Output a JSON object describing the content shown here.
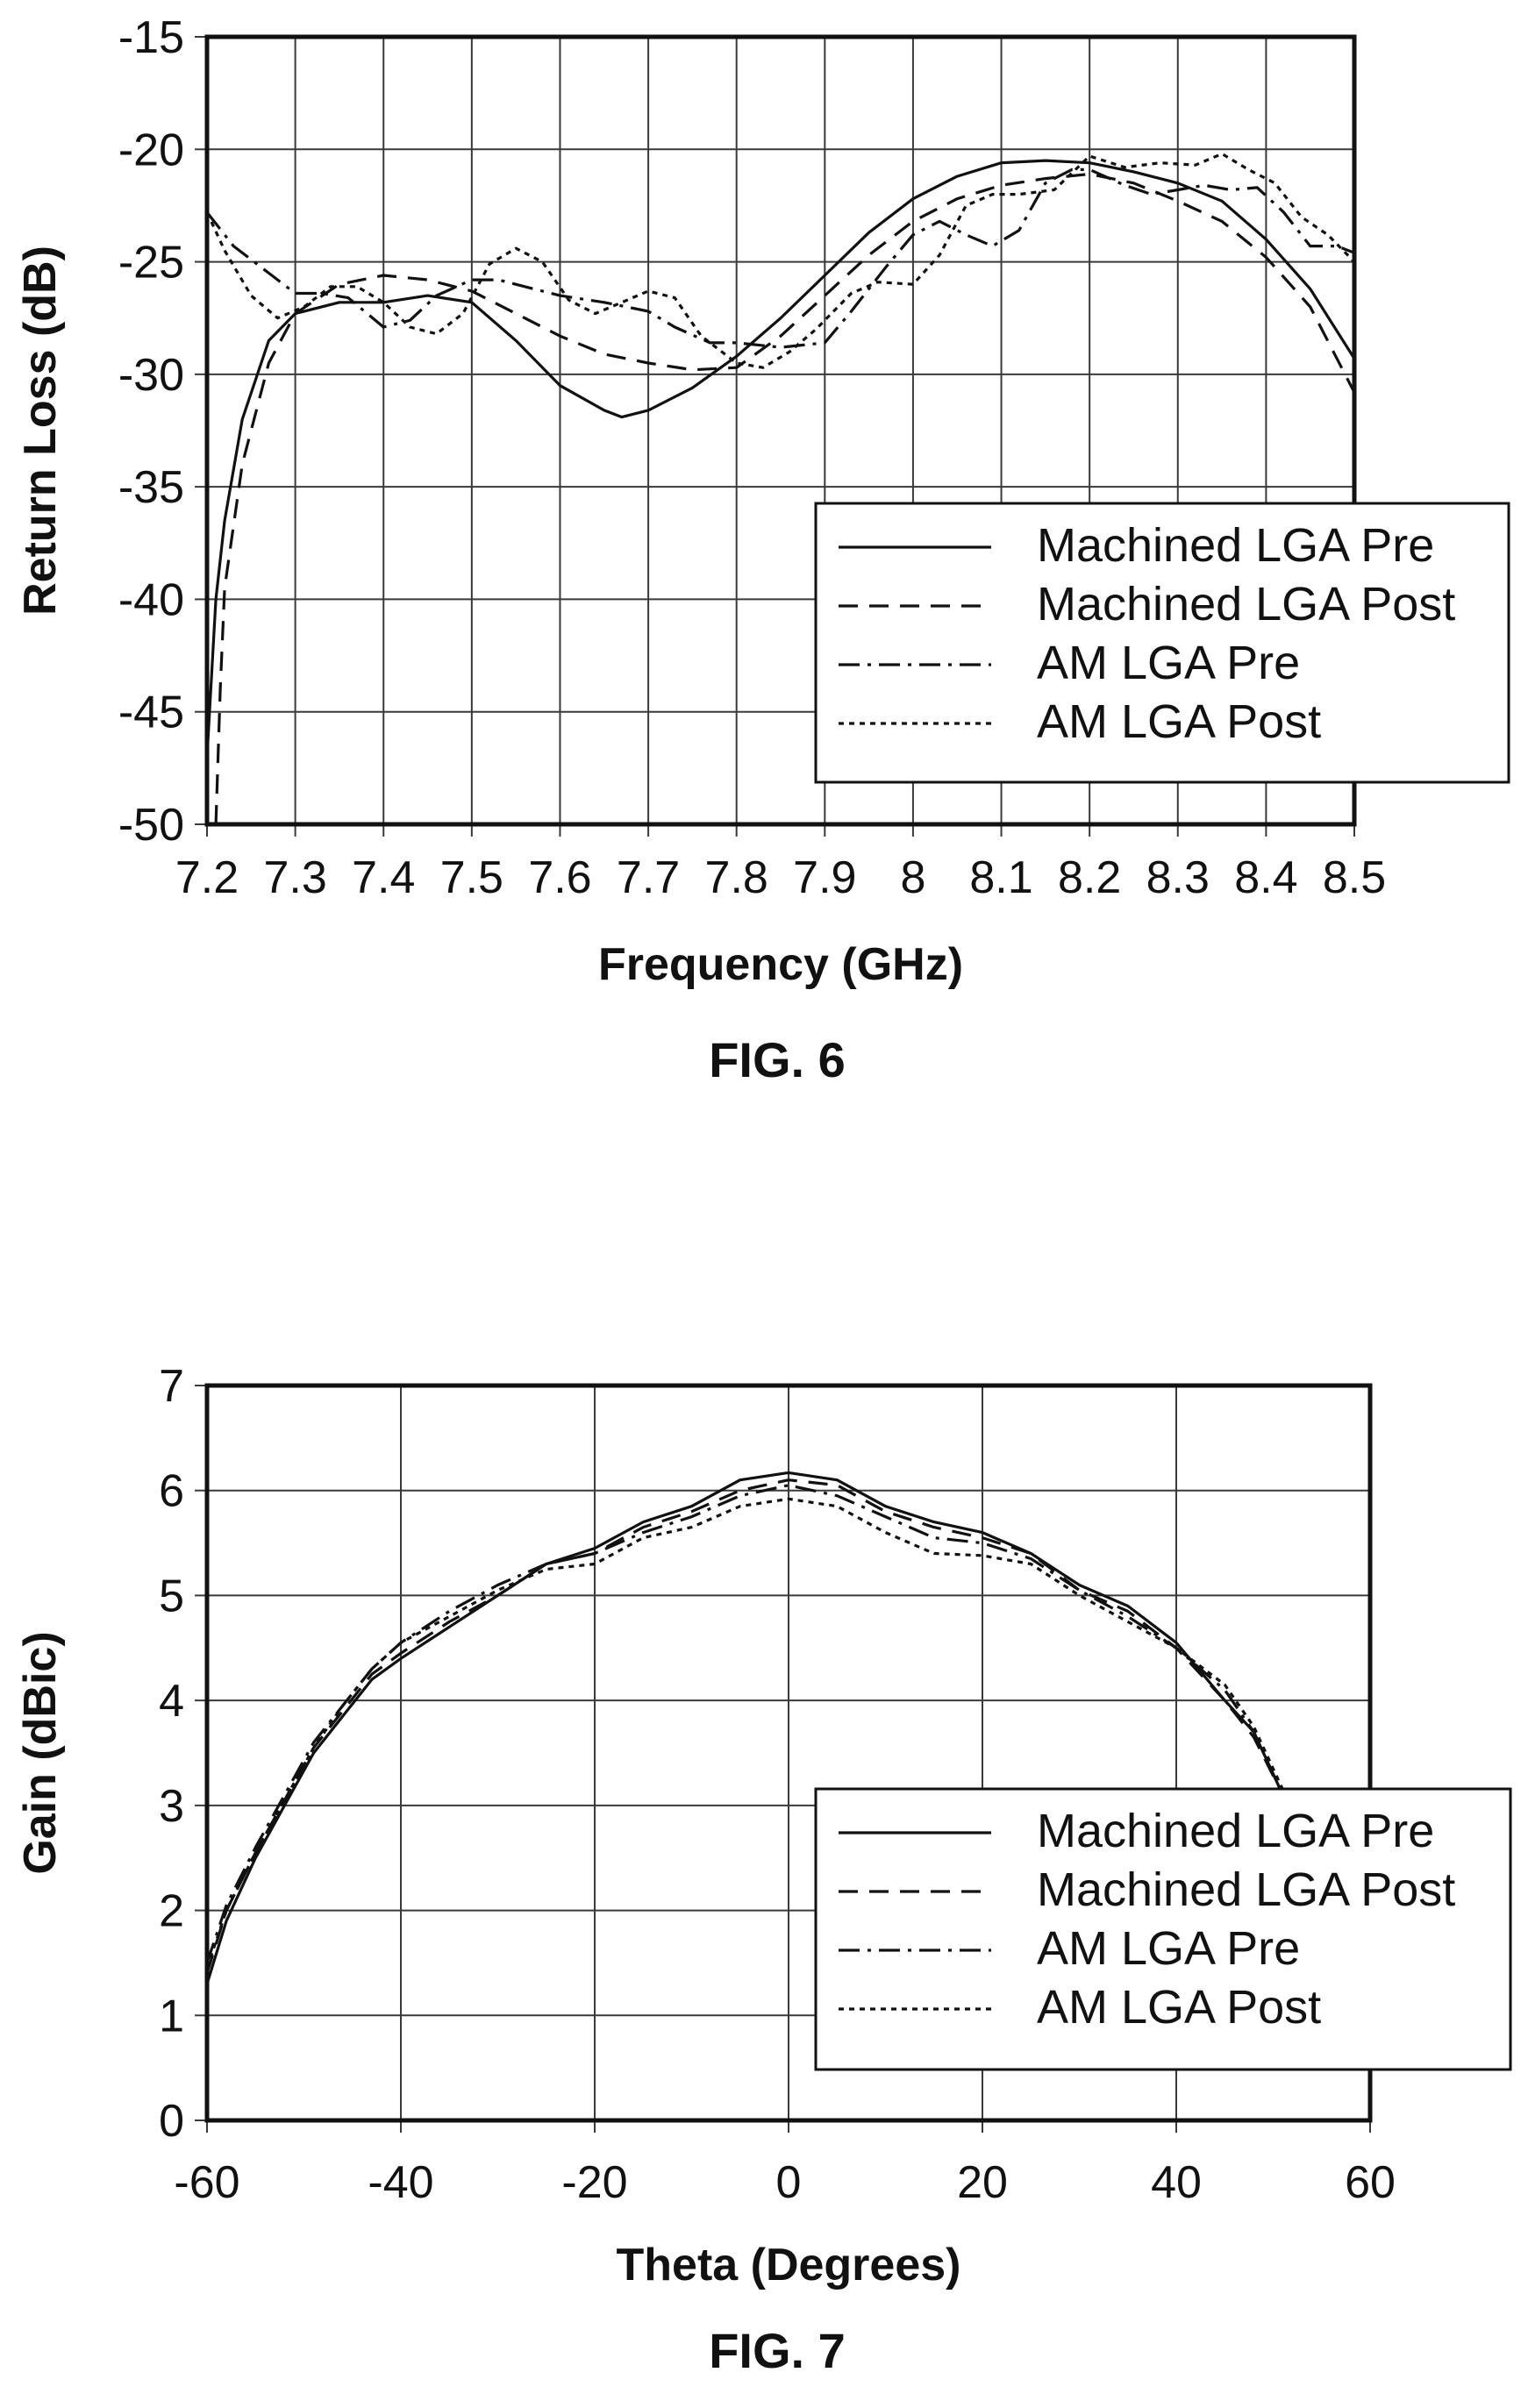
{
  "chart_data": [
    {
      "type": "line",
      "caption": "FIG. 6",
      "xlabel": "Frequency (GHz)",
      "ylabel": "Return Loss (dB)",
      "xlim": [
        7.2,
        8.5
      ],
      "ylim": [
        -50,
        -15
      ],
      "x_ticks": [
        "7.2",
        "7.3",
        "7.4",
        "7.5",
        "7.6",
        "7.7",
        "7.8",
        "7.9",
        "8",
        "8.1",
        "8.2",
        "8.3",
        "8.4",
        "8.5"
      ],
      "y_ticks": [
        "-15",
        "-20",
        "-25",
        "-30",
        "-35",
        "-40",
        "-45",
        "-50"
      ],
      "grid": true,
      "legend_position": "bottom-right",
      "series": [
        {
          "name": "Machined LGA Pre",
          "style": "solid",
          "points": [
            [
              7.2,
              -47
            ],
            [
              7.21,
              -40
            ],
            [
              7.22,
              -36.5
            ],
            [
              7.24,
              -32
            ],
            [
              7.27,
              -28.5
            ],
            [
              7.3,
              -27.3
            ],
            [
              7.35,
              -26.8
            ],
            [
              7.4,
              -26.8
            ],
            [
              7.45,
              -26.5
            ],
            [
              7.5,
              -26.8
            ],
            [
              7.55,
              -28.5
            ],
            [
              7.6,
              -30.5
            ],
            [
              7.65,
              -31.6
            ],
            [
              7.67,
              -31.9
            ],
            [
              7.7,
              -31.6
            ],
            [
              7.75,
              -30.6
            ],
            [
              7.8,
              -29.2
            ],
            [
              7.85,
              -27.5
            ],
            [
              7.9,
              -25.6
            ],
            [
              7.95,
              -23.7
            ],
            [
              8.0,
              -22.2
            ],
            [
              8.05,
              -21.2
            ],
            [
              8.1,
              -20.6
            ],
            [
              8.15,
              -20.5
            ],
            [
              8.2,
              -20.6
            ],
            [
              8.25,
              -21
            ],
            [
              8.3,
              -21.5
            ],
            [
              8.35,
              -22.3
            ],
            [
              8.4,
              -24
            ],
            [
              8.45,
              -26.2
            ],
            [
              8.5,
              -29.3
            ]
          ]
        },
        {
          "name": "Machined LGA Post",
          "style": "dashed",
          "points": [
            [
              7.21,
              -50
            ],
            [
              7.215,
              -44
            ],
            [
              7.22,
              -39.5
            ],
            [
              7.24,
              -34
            ],
            [
              7.27,
              -29.5
            ],
            [
              7.3,
              -27.3
            ],
            [
              7.35,
              -26
            ],
            [
              7.4,
              -25.6
            ],
            [
              7.45,
              -25.8
            ],
            [
              7.5,
              -26.3
            ],
            [
              7.55,
              -27.3
            ],
            [
              7.6,
              -28.3
            ],
            [
              7.65,
              -29.1
            ],
            [
              7.7,
              -29.5
            ],
            [
              7.75,
              -29.8
            ],
            [
              7.8,
              -29.7
            ],
            [
              7.85,
              -28.3
            ],
            [
              7.9,
              -26.5
            ],
            [
              7.95,
              -24.7
            ],
            [
              8.0,
              -23.2
            ],
            [
              8.05,
              -22.2
            ],
            [
              8.1,
              -21.6
            ],
            [
              8.15,
              -21.3
            ],
            [
              8.2,
              -21.1
            ],
            [
              8.25,
              -21.5
            ],
            [
              8.3,
              -22.3
            ],
            [
              8.35,
              -23.2
            ],
            [
              8.4,
              -24.8
            ],
            [
              8.45,
              -27
            ],
            [
              8.5,
              -30.8
            ]
          ]
        },
        {
          "name": "AM LGA Pre",
          "style": "dash-dot",
          "points": [
            [
              7.2,
              -22.8
            ],
            [
              7.23,
              -24.3
            ],
            [
              7.27,
              -25.5
            ],
            [
              7.3,
              -26.4
            ],
            [
              7.33,
              -26.4
            ],
            [
              7.36,
              -26.6
            ],
            [
              7.4,
              -27.9
            ],
            [
              7.43,
              -27.6
            ],
            [
              7.46,
              -26.5
            ],
            [
              7.5,
              -25.8
            ],
            [
              7.53,
              -25.8
            ],
            [
              7.57,
              -26.2
            ],
            [
              7.6,
              -26.5
            ],
            [
              7.65,
              -26.8
            ],
            [
              7.7,
              -27.2
            ],
            [
              7.73,
              -27.9
            ],
            [
              7.77,
              -28.6
            ],
            [
              7.8,
              -28.6
            ],
            [
              7.85,
              -28.8
            ],
            [
              7.9,
              -28.6
            ],
            [
              7.93,
              -27.2
            ],
            [
              7.97,
              -25.2
            ],
            [
              8.0,
              -23.8
            ],
            [
              8.03,
              -23.2
            ],
            [
              8.06,
              -23.8
            ],
            [
              8.09,
              -24.3
            ],
            [
              8.12,
              -23.6
            ],
            [
              8.15,
              -21.5
            ],
            [
              8.18,
              -20.9
            ],
            [
              8.2,
              -20.9
            ],
            [
              8.24,
              -21.6
            ],
            [
              8.27,
              -22
            ],
            [
              8.3,
              -21.8
            ],
            [
              8.33,
              -21.6
            ],
            [
              8.36,
              -21.8
            ],
            [
              8.39,
              -21.7
            ],
            [
              8.42,
              -22.8
            ],
            [
              8.45,
              -24.3
            ],
            [
              8.48,
              -24.3
            ],
            [
              8.5,
              -24.6
            ]
          ]
        },
        {
          "name": "AM LGA Post",
          "style": "dotted",
          "points": [
            [
              7.2,
              -22.8
            ],
            [
              7.22,
              -24.5
            ],
            [
              7.25,
              -26.5
            ],
            [
              7.28,
              -27.5
            ],
            [
              7.31,
              -27
            ],
            [
              7.34,
              -26.1
            ],
            [
              7.37,
              -26.1
            ],
            [
              7.4,
              -26.8
            ],
            [
              7.43,
              -27.9
            ],
            [
              7.46,
              -28.2
            ],
            [
              7.49,
              -27.3
            ],
            [
              7.52,
              -25.1
            ],
            [
              7.55,
              -24.4
            ],
            [
              7.58,
              -25
            ],
            [
              7.61,
              -26.7
            ],
            [
              7.64,
              -27.3
            ],
            [
              7.67,
              -26.8
            ],
            [
              7.7,
              -26.3
            ],
            [
              7.73,
              -26.6
            ],
            [
              7.76,
              -28.3
            ],
            [
              7.8,
              -29.5
            ],
            [
              7.83,
              -29.7
            ],
            [
              7.86,
              -29
            ],
            [
              7.89,
              -28
            ],
            [
              7.93,
              -26.4
            ],
            [
              7.96,
              -25.9
            ],
            [
              8.0,
              -26
            ],
            [
              8.03,
              -24.7
            ],
            [
              8.06,
              -22.5
            ],
            [
              8.09,
              -22
            ],
            [
              8.12,
              -22
            ],
            [
              8.16,
              -21.8
            ],
            [
              8.2,
              -20.3
            ],
            [
              8.24,
              -20.8
            ],
            [
              8.28,
              -20.6
            ],
            [
              8.32,
              -20.7
            ],
            [
              8.35,
              -20.2
            ],
            [
              8.38,
              -20.9
            ],
            [
              8.41,
              -21.5
            ],
            [
              8.44,
              -23
            ],
            [
              8.47,
              -23.8
            ],
            [
              8.5,
              -25
            ]
          ]
        }
      ]
    },
    {
      "type": "line",
      "caption": "FIG. 7",
      "xlabel": "Theta (Degrees)",
      "ylabel": "Gain (dBic)",
      "xlim": [
        -60,
        60
      ],
      "ylim": [
        0,
        7
      ],
      "x_ticks": [
        "-60",
        "-40",
        "-20",
        "0",
        "20",
        "40",
        "60"
      ],
      "y_ticks": [
        "7",
        "6",
        "5",
        "4",
        "3",
        "2",
        "1",
        "0"
      ],
      "grid": true,
      "legend_position": "bottom-right",
      "series": [
        {
          "name": "Machined LGA Pre",
          "style": "solid",
          "points": [
            [
              -60,
              1.3
            ],
            [
              -58,
              1.9
            ],
            [
              -55,
              2.5
            ],
            [
              -52,
              3.0
            ],
            [
              -49,
              3.5
            ],
            [
              -46,
              3.85
            ],
            [
              -43,
              4.2
            ],
            [
              -40,
              4.4
            ],
            [
              -35,
              4.7
            ],
            [
              -30,
              5.0
            ],
            [
              -25,
              5.3
            ],
            [
              -20,
              5.45
            ],
            [
              -15,
              5.7
            ],
            [
              -10,
              5.85
            ],
            [
              -5,
              6.1
            ],
            [
              0,
              6.17
            ],
            [
              5,
              6.1
            ],
            [
              10,
              5.85
            ],
            [
              15,
              5.7
            ],
            [
              20,
              5.6
            ],
            [
              25,
              5.4
            ],
            [
              30,
              5.1
            ],
            [
              35,
              4.9
            ],
            [
              40,
              4.55
            ],
            [
              45,
              4.0
            ],
            [
              48,
              3.7
            ],
            [
              51,
              3.1
            ]
          ]
        },
        {
          "name": "Machined LGA Post",
          "style": "dashed",
          "points": [
            [
              -60,
              1.4
            ],
            [
              -58,
              2.0
            ],
            [
              -55,
              2.55
            ],
            [
              -52,
              3.05
            ],
            [
              -49,
              3.55
            ],
            [
              -46,
              3.9
            ],
            [
              -43,
              4.25
            ],
            [
              -40,
              4.45
            ],
            [
              -35,
              4.75
            ],
            [
              -30,
              5.0
            ],
            [
              -25,
              5.3
            ],
            [
              -20,
              5.4
            ],
            [
              -15,
              5.65
            ],
            [
              -10,
              5.8
            ],
            [
              -5,
              6.0
            ],
            [
              0,
              6.1
            ],
            [
              5,
              6.05
            ],
            [
              10,
              5.8
            ],
            [
              15,
              5.65
            ],
            [
              20,
              5.55
            ],
            [
              25,
              5.4
            ],
            [
              30,
              5.05
            ],
            [
              35,
              4.85
            ],
            [
              40,
              4.5
            ],
            [
              45,
              4.0
            ],
            [
              48,
              3.65
            ],
            [
              51,
              3.1
            ]
          ]
        },
        {
          "name": "AM LGA Pre",
          "style": "dash-dot",
          "points": [
            [
              -60,
              1.5
            ],
            [
              -58,
              2.05
            ],
            [
              -55,
              2.6
            ],
            [
              -52,
              3.1
            ],
            [
              -49,
              3.6
            ],
            [
              -46,
              3.95
            ],
            [
              -43,
              4.3
            ],
            [
              -40,
              4.55
            ],
            [
              -35,
              4.85
            ],
            [
              -30,
              5.1
            ],
            [
              -25,
              5.3
            ],
            [
              -20,
              5.4
            ],
            [
              -15,
              5.6
            ],
            [
              -10,
              5.75
            ],
            [
              -5,
              5.95
            ],
            [
              0,
              6.05
            ],
            [
              5,
              5.95
            ],
            [
              10,
              5.75
            ],
            [
              15,
              5.55
            ],
            [
              20,
              5.5
            ],
            [
              25,
              5.35
            ],
            [
              30,
              5.05
            ],
            [
              35,
              4.8
            ],
            [
              40,
              4.5
            ],
            [
              45,
              4.1
            ],
            [
              48,
              3.7
            ],
            [
              51,
              3.1
            ]
          ]
        },
        {
          "name": "AM LGA Post",
          "style": "dotted",
          "points": [
            [
              -60,
              1.45
            ],
            [
              -58,
              2.0
            ],
            [
              -55,
              2.55
            ],
            [
              -52,
              3.05
            ],
            [
              -49,
              3.55
            ],
            [
              -46,
              3.95
            ],
            [
              -43,
              4.3
            ],
            [
              -40,
              4.55
            ],
            [
              -35,
              4.8
            ],
            [
              -30,
              5.05
            ],
            [
              -25,
              5.25
            ],
            [
              -20,
              5.3
            ],
            [
              -15,
              5.55
            ],
            [
              -10,
              5.65
            ],
            [
              -5,
              5.85
            ],
            [
              0,
              5.92
            ],
            [
              5,
              5.85
            ],
            [
              10,
              5.6
            ],
            [
              15,
              5.4
            ],
            [
              20,
              5.38
            ],
            [
              25,
              5.3
            ],
            [
              30,
              5.0
            ],
            [
              35,
              4.75
            ],
            [
              40,
              4.5
            ],
            [
              45,
              4.15
            ],
            [
              48,
              3.75
            ],
            [
              51,
              3.15
            ]
          ]
        }
      ]
    }
  ]
}
